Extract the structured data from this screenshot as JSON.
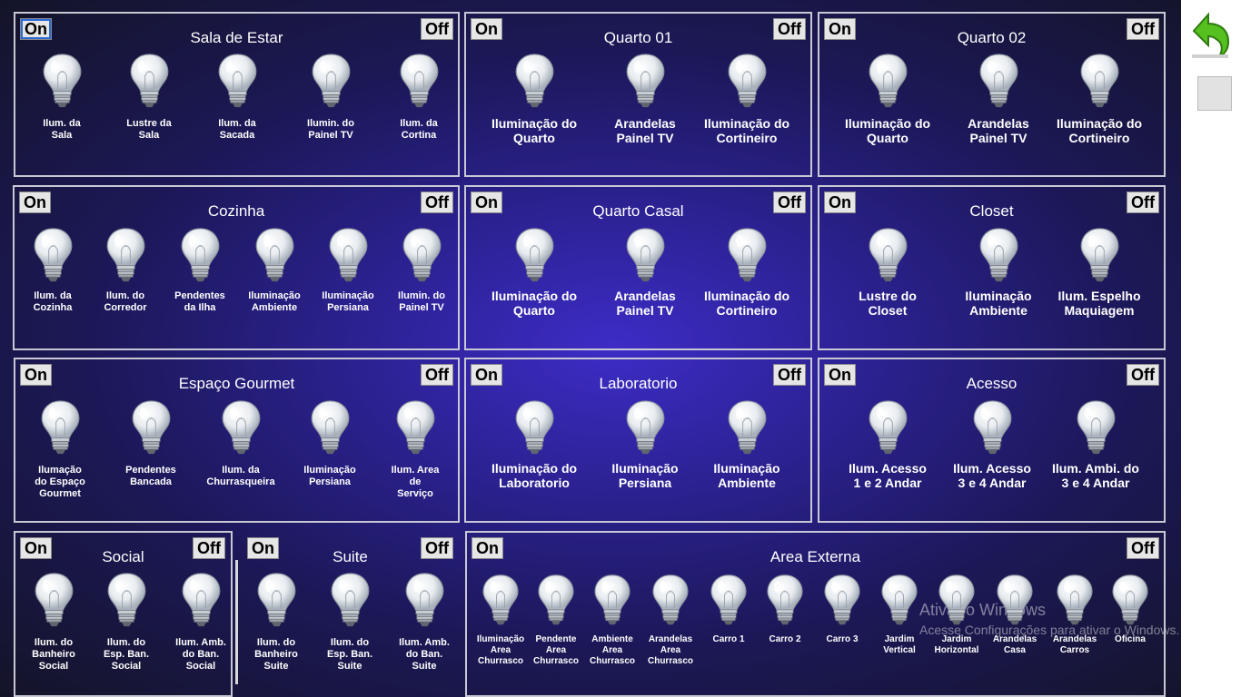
{
  "rooms": [
    {
      "title": "Sala de Estar",
      "on": "On",
      "off": "Off",
      "lights": [
        "Ilum. da\nSala",
        "Lustre da\nSala",
        "Ilum. da\nSacada",
        "Ilumin. do\nPainel TV",
        "Ilum. da\nCortina"
      ]
    },
    {
      "title": "Quarto 01",
      "on": "On",
      "off": "Off",
      "lights": [
        "Iluminação do\nQuarto",
        "Arandelas\nPainel TV",
        "Iluminação do\nCortineiro"
      ]
    },
    {
      "title": "Quarto 02",
      "on": "On",
      "off": "Off",
      "lights": [
        "Iluminação do\nQuarto",
        "Arandelas\nPainel TV",
        "Iluminação do\nCortineiro"
      ]
    },
    {
      "title": "Cozinha",
      "on": "On",
      "off": "Off",
      "lights": [
        "Ilum. da\nCozinha",
        "Ilum. do\nCorredor",
        "Pendentes\nda Ilha",
        "Iluminação\nAmbiente",
        "Iluminação\nPersiana",
        "Ilumin. do\nPainel TV"
      ]
    },
    {
      "title": "Quarto Casal",
      "on": "On",
      "off": "Off",
      "lights": [
        "Iluminação do\nQuarto",
        "Arandelas\nPainel TV",
        "Iluminação do\nCortineiro"
      ]
    },
    {
      "title": "Closet",
      "on": "On",
      "off": "Off",
      "lights": [
        "Lustre do Closet",
        "Iluminação\nAmbiente",
        "Ilum. Espelho\nMaquiagem"
      ]
    },
    {
      "title": "Espaço Gourmet",
      "on": "On",
      "off": "Off",
      "lights": [
        "Ilumação\ndo Espaço\nGourmet",
        "Pendentes\nBancada",
        "Ilum. da\nChurrasqueira",
        "Iluminação\nPersiana",
        "Ilum. Area\nde\nServiço"
      ]
    },
    {
      "title": "Laboratorio",
      "on": "On",
      "off": "Off",
      "lights": [
        "Iluminação do\nLaboratorio",
        "Iluminação\nPersiana",
        "Iluminação\nAmbiente"
      ]
    },
    {
      "title": "Acesso",
      "on": "On",
      "off": "Off",
      "lights": [
        "Ilum. Acesso\n1 e 2 Andar",
        "Ilum. Acesso\n3 e 4 Andar",
        "Ilum. Ambi. do\n3 e 4 Andar"
      ]
    },
    {
      "title": "Social",
      "on": "On",
      "off": "Off",
      "lights": [
        "Ilum. do\nBanheiro\nSocial",
        "Ilum. do\nEsp. Ban.\nSocial",
        "Ilum. Amb.\ndo Ban.\nSocial"
      ]
    },
    {
      "title": "Suite",
      "on": "On",
      "off": "Off",
      "lights": [
        "Ilum. do\nBanheiro\nSuite",
        "Ilum. do\nEsp. Ban.\nSuite",
        "Ilum. Amb.\ndo Ban.\nSuite"
      ]
    },
    {
      "title": "Area Externa",
      "on": "On",
      "off": "Off",
      "lights": [
        "Iluminação\nArea\nChurrasco",
        "Pendente\nArea\nChurrasco",
        "Ambiente\nArea\nChurrasco",
        "Arandelas\nArea\nChurrasco",
        "Carro 1",
        "Carro 2",
        "Carro 3",
        "Jardim\nVertical",
        "Jardim\nHorizontal",
        "Arandelas\nCasa",
        "Arandelas\nCarros",
        "Oficina"
      ]
    }
  ],
  "watermark": {
    "line1": "Ativar o Windows",
    "line2": "Acesse Configurações para ativar o Windows."
  },
  "icons": {
    "back": "back-arrow-icon",
    "lamp": "light-bulb-icon",
    "square": "square-icon"
  }
}
